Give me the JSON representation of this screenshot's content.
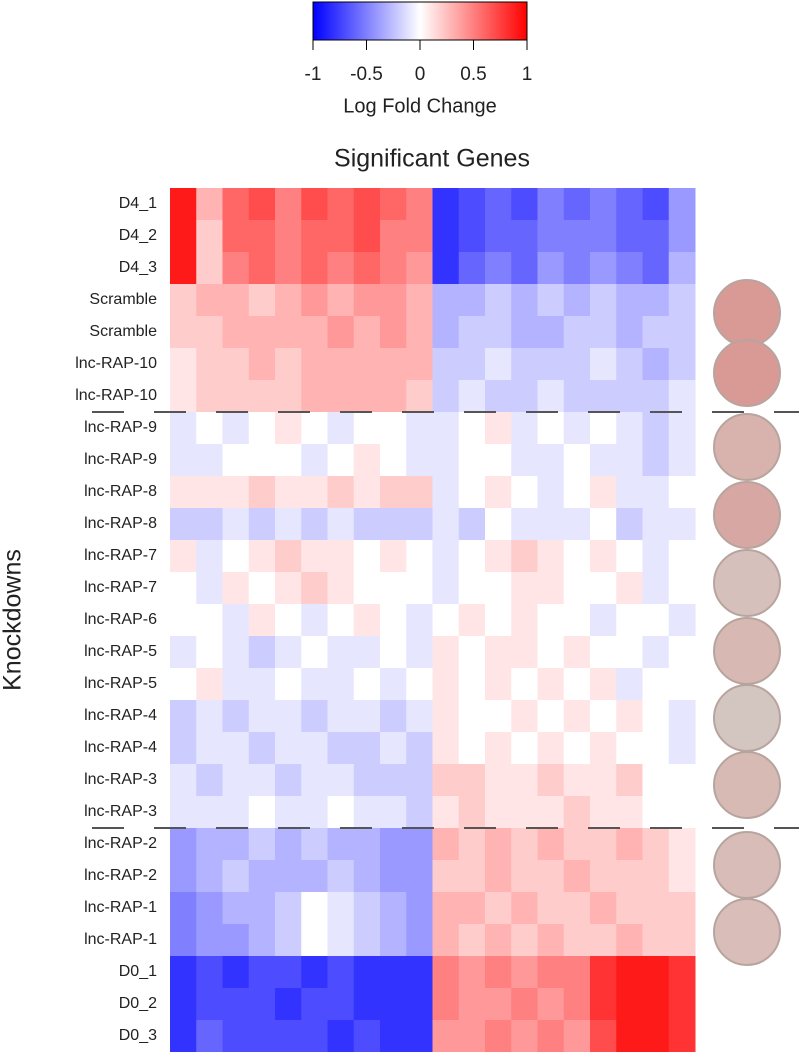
{
  "chart_data": {
    "type": "heatmap",
    "title": "Significant Genes",
    "ylabel": "Knockdowns",
    "colorbar_label": "Log Fold Change",
    "clim": [
      -1,
      1
    ],
    "cticks": [
      -1,
      -0.5,
      0,
      0.5,
      1
    ],
    "colors": [
      "#0000ff",
      "#ffffff",
      "#ff0000"
    ],
    "rows": [
      "D4_1",
      "D4_2",
      "D4_3",
      "Scramble",
      "Scramble",
      "lnc-RAP-10",
      "lnc-RAP-10",
      "lnc-RAP-9",
      "lnc-RAP-9",
      "lnc-RAP-8",
      "lnc-RAP-8",
      "lnc-RAP-7",
      "lnc-RAP-7",
      "lnc-RAP-6",
      "lnc-RAP-5",
      "lnc-RAP-5",
      "lnc-RAP-4",
      "lnc-RAP-4",
      "lnc-RAP-3",
      "lnc-RAP-3",
      "lnc-RAP-2",
      "lnc-RAP-2",
      "lnc-RAP-1",
      "lnc-RAP-1",
      "D0_1",
      "D0_2",
      "D0_3"
    ],
    "values": [
      [
        0.9,
        0.3,
        0.6,
        0.7,
        0.5,
        0.7,
        0.6,
        0.7,
        0.6,
        0.5,
        -0.8,
        -0.7,
        -0.6,
        -0.7,
        -0.5,
        -0.6,
        -0.5,
        -0.6,
        -0.7,
        -0.4
      ],
      [
        0.9,
        0.2,
        0.6,
        0.6,
        0.5,
        0.6,
        0.6,
        0.7,
        0.5,
        0.5,
        -0.8,
        -0.7,
        -0.6,
        -0.6,
        -0.5,
        -0.5,
        -0.5,
        -0.6,
        -0.6,
        -0.4
      ],
      [
        0.9,
        0.2,
        0.5,
        0.6,
        0.5,
        0.6,
        0.5,
        0.6,
        0.5,
        0.4,
        -0.8,
        -0.6,
        -0.5,
        -0.6,
        -0.4,
        -0.5,
        -0.4,
        -0.5,
        -0.6,
        -0.3
      ],
      [
        0.2,
        0.3,
        0.3,
        0.2,
        0.3,
        0.4,
        0.3,
        0.4,
        0.4,
        0.3,
        -0.3,
        -0.3,
        -0.2,
        -0.3,
        -0.2,
        -0.3,
        -0.2,
        -0.3,
        -0.3,
        -0.2
      ],
      [
        0.2,
        0.2,
        0.3,
        0.3,
        0.3,
        0.3,
        0.4,
        0.3,
        0.4,
        0.3,
        -0.3,
        -0.2,
        -0.2,
        -0.3,
        -0.3,
        -0.2,
        -0.2,
        -0.3,
        -0.2,
        -0.2
      ],
      [
        0.1,
        0.2,
        0.2,
        0.3,
        0.2,
        0.3,
        0.3,
        0.3,
        0.3,
        0.3,
        -0.2,
        -0.2,
        -0.1,
        -0.2,
        -0.2,
        -0.2,
        -0.1,
        -0.2,
        -0.3,
        -0.2
      ],
      [
        0.1,
        0.2,
        0.2,
        0.2,
        0.2,
        0.3,
        0.3,
        0.3,
        0.3,
        0.2,
        -0.2,
        -0.1,
        -0.2,
        -0.2,
        -0.1,
        -0.2,
        -0.2,
        -0.2,
        -0.2,
        -0.1
      ],
      [
        -0.1,
        0,
        -0.1,
        0,
        0.1,
        0,
        -0.1,
        0,
        0,
        -0.1,
        -0.1,
        0,
        0.1,
        -0.1,
        0,
        -0.1,
        0,
        -0.1,
        -0.2,
        -0.1
      ],
      [
        -0.1,
        -0.1,
        0,
        0,
        0,
        -0.1,
        0,
        0.1,
        0,
        -0.1,
        -0.1,
        0,
        0,
        -0.1,
        -0.1,
        0,
        -0.1,
        -0.1,
        -0.2,
        -0.1
      ],
      [
        0.1,
        0.1,
        0.1,
        0.2,
        0.1,
        0.1,
        0.2,
        0.1,
        0.2,
        0.2,
        -0.1,
        0,
        0.1,
        0,
        -0.1,
        0,
        0.1,
        -0.1,
        -0.1,
        0
      ],
      [
        -0.2,
        -0.2,
        -0.1,
        -0.2,
        -0.1,
        -0.2,
        -0.1,
        -0.2,
        -0.2,
        -0.2,
        -0.1,
        -0.2,
        0,
        -0.1,
        -0.1,
        -0.1,
        0,
        -0.2,
        -0.1,
        -0.1
      ],
      [
        0.1,
        -0.1,
        0,
        0.1,
        0.2,
        0.1,
        0.1,
        0,
        0.1,
        0,
        -0.1,
        0,
        0.1,
        0.2,
        0.1,
        0,
        0.1,
        0,
        -0.1,
        0
      ],
      [
        0,
        -0.1,
        0.1,
        0,
        0.1,
        0.2,
        0.1,
        0,
        0,
        0,
        -0.1,
        0,
        0,
        0.1,
        0.1,
        0,
        0,
        0.1,
        -0.1,
        0
      ],
      [
        0,
        0,
        -0.1,
        0.1,
        0,
        -0.1,
        0,
        0.1,
        0,
        -0.1,
        0,
        0.1,
        0,
        0.1,
        0,
        0,
        -0.1,
        0,
        0,
        -0.1
      ],
      [
        -0.1,
        0,
        -0.1,
        -0.2,
        -0.1,
        0,
        -0.1,
        -0.1,
        0,
        -0.1,
        0.1,
        0,
        0.1,
        0.1,
        0,
        0.1,
        0,
        0,
        -0.1,
        0
      ],
      [
        0,
        0.1,
        -0.1,
        -0.1,
        0,
        -0.1,
        -0.1,
        0,
        -0.1,
        0,
        0.1,
        0,
        0.1,
        0,
        0.1,
        0,
        0.1,
        -0.1,
        0,
        0
      ],
      [
        -0.2,
        -0.1,
        -0.2,
        -0.1,
        -0.1,
        -0.2,
        -0.1,
        -0.1,
        -0.2,
        -0.1,
        0.1,
        0,
        0,
        0.1,
        0,
        0.1,
        0,
        0.1,
        0,
        -0.1
      ],
      [
        -0.2,
        -0.1,
        -0.1,
        -0.2,
        -0.1,
        -0.1,
        -0.2,
        -0.2,
        -0.1,
        -0.2,
        0.1,
        0,
        0.1,
        0,
        0.1,
        0,
        0.1,
        0,
        0,
        -0.1
      ],
      [
        -0.1,
        -0.2,
        -0.1,
        -0.1,
        -0.2,
        -0.1,
        -0.1,
        -0.2,
        -0.2,
        -0.2,
        0.2,
        0.2,
        0.1,
        0.1,
        0.2,
        0.1,
        0.1,
        0.2,
        0,
        0
      ],
      [
        -0.1,
        -0.1,
        -0.1,
        0,
        -0.1,
        -0.1,
        0,
        -0.1,
        -0.1,
        -0.2,
        0.1,
        0.2,
        0.1,
        0.1,
        0.1,
        0.2,
        0.1,
        0.1,
        0,
        0
      ],
      [
        -0.4,
        -0.3,
        -0.3,
        -0.2,
        -0.3,
        -0.2,
        -0.3,
        -0.3,
        -0.4,
        -0.4,
        0.3,
        0.2,
        0.3,
        0.2,
        0.3,
        0.2,
        0.2,
        0.3,
        0.2,
        0.1
      ],
      [
        -0.4,
        -0.3,
        -0.2,
        -0.3,
        -0.3,
        -0.3,
        -0.2,
        -0.3,
        -0.4,
        -0.4,
        0.2,
        0.2,
        0.3,
        0.2,
        0.2,
        0.3,
        0.2,
        0.2,
        0.2,
        0.1
      ],
      [
        -0.5,
        -0.4,
        -0.3,
        -0.3,
        -0.2,
        0,
        -0.1,
        -0.2,
        -0.3,
        -0.4,
        0.3,
        0.3,
        0.2,
        0.3,
        0.2,
        0.2,
        0.3,
        0.2,
        0.2,
        0.2
      ],
      [
        -0.5,
        -0.4,
        -0.4,
        -0.3,
        -0.2,
        0,
        -0.1,
        -0.2,
        -0.3,
        -0.4,
        0.3,
        0.2,
        0.3,
        0.2,
        0.3,
        0.2,
        0.2,
        0.3,
        0.2,
        0.2
      ],
      [
        -0.8,
        -0.7,
        -0.8,
        -0.7,
        -0.7,
        -0.8,
        -0.7,
        -0.8,
        -0.8,
        -0.8,
        0.5,
        0.4,
        0.5,
        0.4,
        0.5,
        0.5,
        0.8,
        0.9,
        0.9,
        0.8
      ],
      [
        -0.8,
        -0.7,
        -0.7,
        -0.7,
        -0.8,
        -0.7,
        -0.7,
        -0.8,
        -0.8,
        -0.8,
        0.5,
        0.4,
        0.4,
        0.5,
        0.4,
        0.5,
        0.8,
        0.9,
        0.9,
        0.8
      ],
      [
        -0.8,
        -0.6,
        -0.7,
        -0.7,
        -0.7,
        -0.7,
        -0.8,
        -0.7,
        -0.8,
        -0.8,
        0.4,
        0.4,
        0.5,
        0.4,
        0.5,
        0.4,
        0.7,
        0.9,
        0.9,
        0.8
      ]
    ]
  }
}
